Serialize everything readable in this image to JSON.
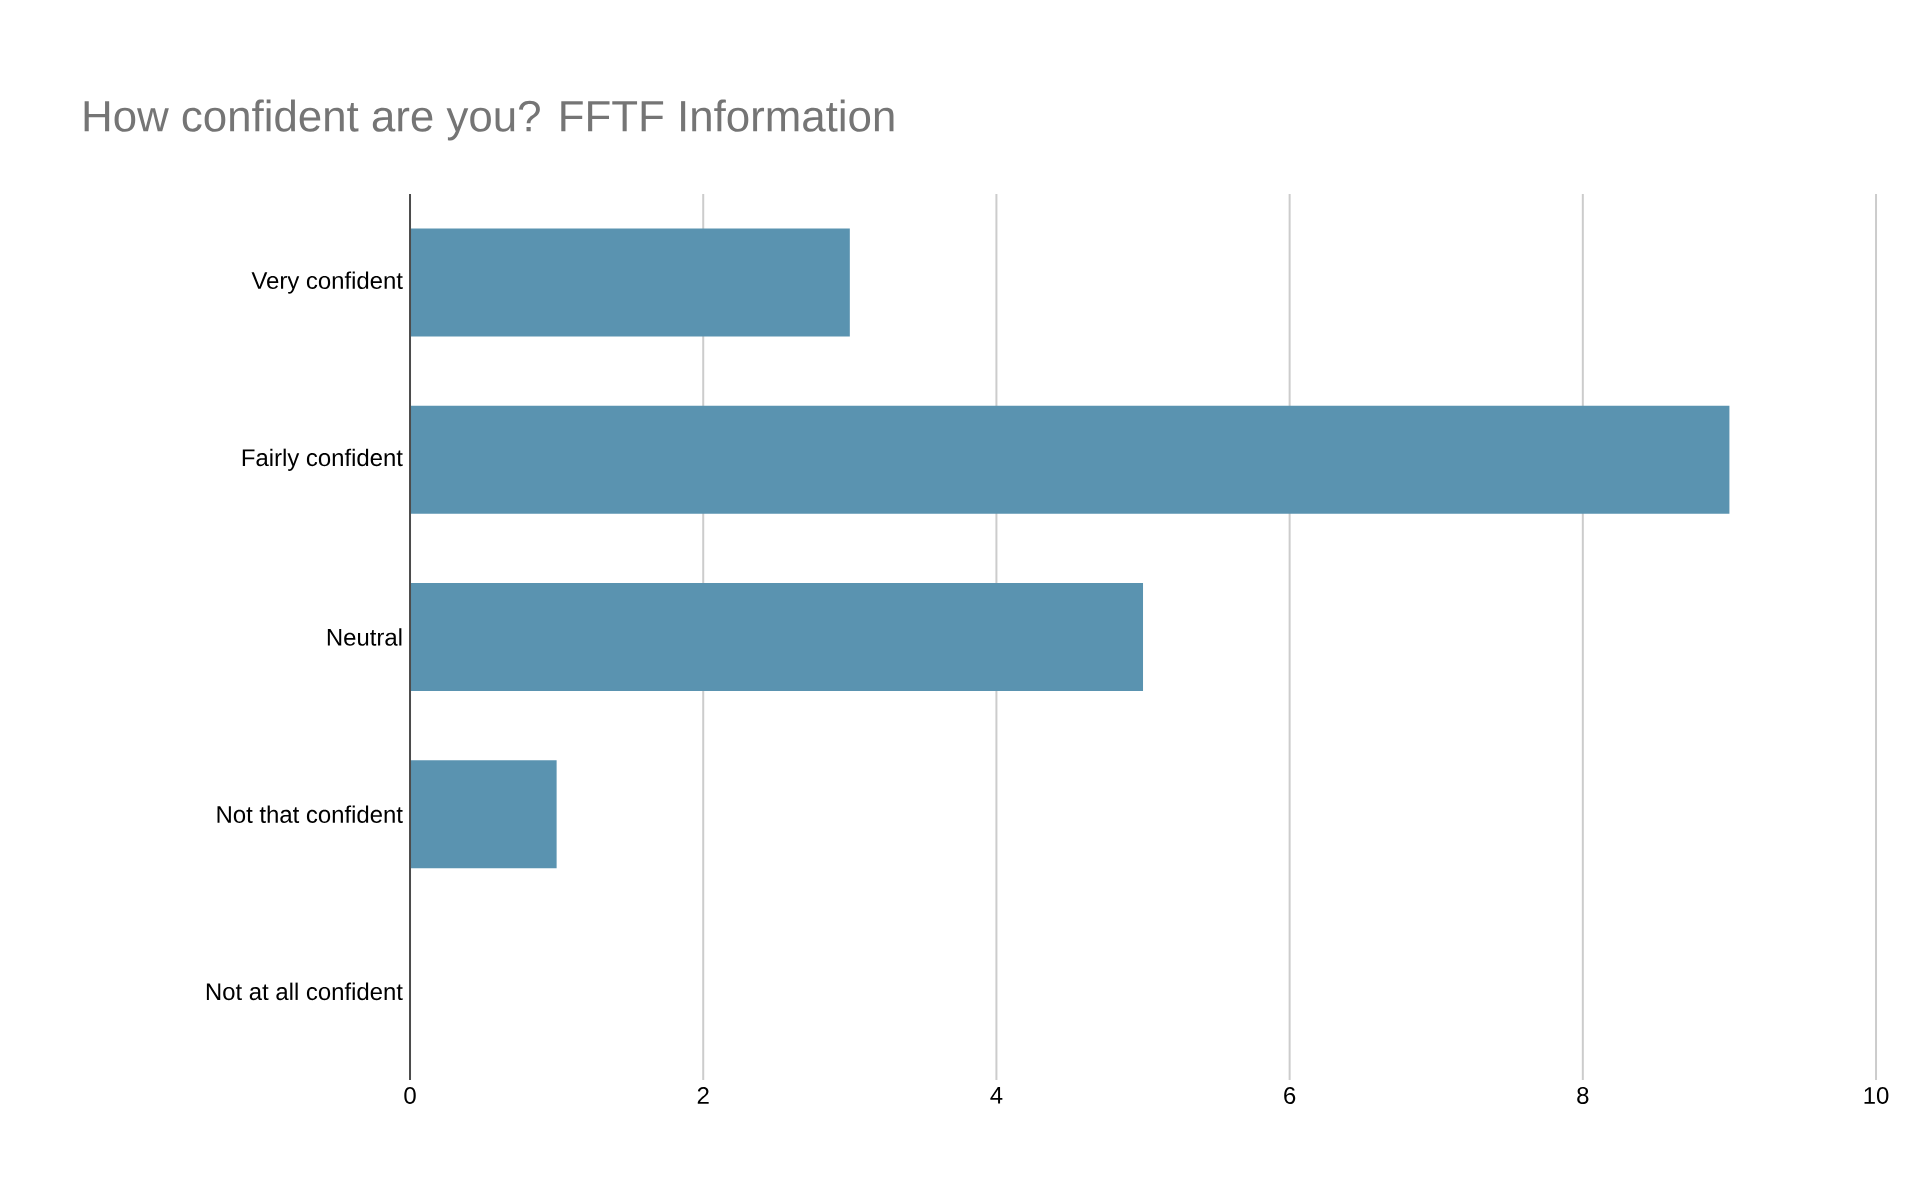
{
  "chart_data": {
    "type": "bar",
    "orientation": "horizontal",
    "title": "How confident are you? FFTF Information",
    "categories": [
      "Very confident",
      "Fairly confident",
      "Neutral",
      "Not that confident",
      "Not at all confident"
    ],
    "values": [
      3,
      9,
      5,
      1,
      0
    ],
    "color": "#5a93b0",
    "xlim": [
      0,
      10
    ],
    "xticks": [
      0,
      2,
      4,
      6,
      8,
      10
    ],
    "grid": "x"
  }
}
